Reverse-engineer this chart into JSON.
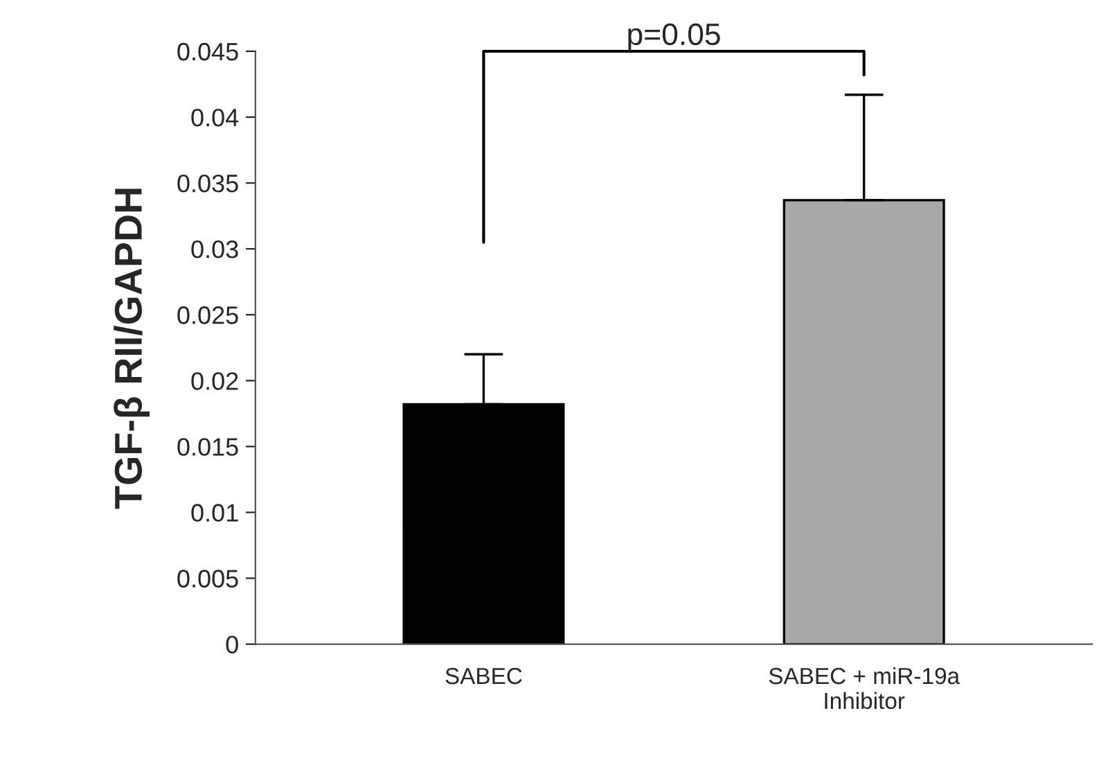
{
  "chart_data": {
    "type": "bar",
    "ylabel": "TGF-β RII/GAPDH",
    "categories": [
      "SABEC",
      "SABEC + miR-19a\nInhibitor"
    ],
    "values": [
      0.0182,
      0.0337
    ],
    "errors": [
      0.0038,
      0.008
    ],
    "colors": [
      "#000000",
      "#a8a8a8"
    ],
    "ylim": [
      0,
      0.045
    ],
    "yticks": [
      0,
      0.005,
      0.01,
      0.015,
      0.02,
      0.025,
      0.03,
      0.035,
      0.04,
      0.045
    ],
    "annotations": [
      "p=0.05"
    ],
    "grid": false,
    "legend": false
  }
}
